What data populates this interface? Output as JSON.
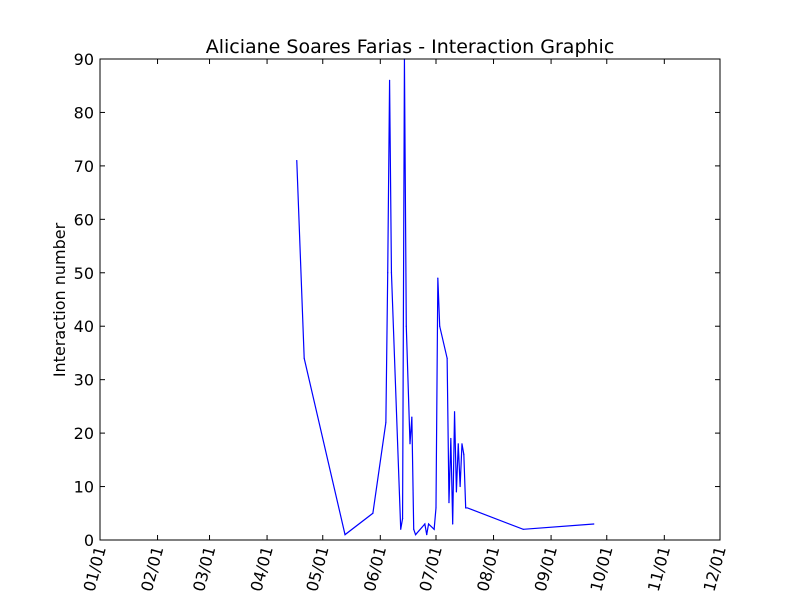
{
  "chart_data": {
    "type": "line",
    "title": "Aliciane Soares Farias - Interaction Graphic",
    "xlabel": "",
    "ylabel": "Interaction number",
    "xlim": [
      "01/01",
      "12/01"
    ],
    "ylim": [
      0,
      90
    ],
    "x_ticks": [
      "01/01",
      "02/01",
      "03/01",
      "04/01",
      "05/01",
      "06/01",
      "07/01",
      "08/01",
      "09/01",
      "10/01",
      "11/01",
      "12/01"
    ],
    "y_ticks": [
      0,
      10,
      20,
      30,
      40,
      50,
      60,
      70,
      80,
      90
    ],
    "grid": false,
    "line_color": "#0000ff",
    "series": [
      {
        "x": [
          "04/17",
          "04/21",
          "05/13",
          "05/28",
          "06/04",
          "06/05",
          "06/06",
          "06/07",
          "06/12",
          "06/13",
          "06/14",
          "06/15",
          "06/17",
          "06/18",
          "06/19",
          "06/20",
          "06/25",
          "06/26",
          "06/27",
          "06/30",
          "07/01",
          "07/02",
          "07/03",
          "07/07",
          "07/08",
          "07/09",
          "07/10",
          "07/11",
          "07/12",
          "07/13",
          "07/14",
          "07/15",
          "07/16",
          "07/17",
          "07/18",
          "08/17",
          "09/24"
        ],
        "values": [
          71,
          34,
          1,
          5,
          22,
          50,
          86,
          50,
          2,
          4,
          90,
          40,
          18,
          23,
          2,
          1,
          3,
          1,
          3,
          2,
          6,
          49,
          40,
          34,
          7,
          19,
          3,
          24,
          9,
          18,
          10,
          18,
          16,
          6,
          6,
          2,
          3
        ]
      }
    ]
  }
}
